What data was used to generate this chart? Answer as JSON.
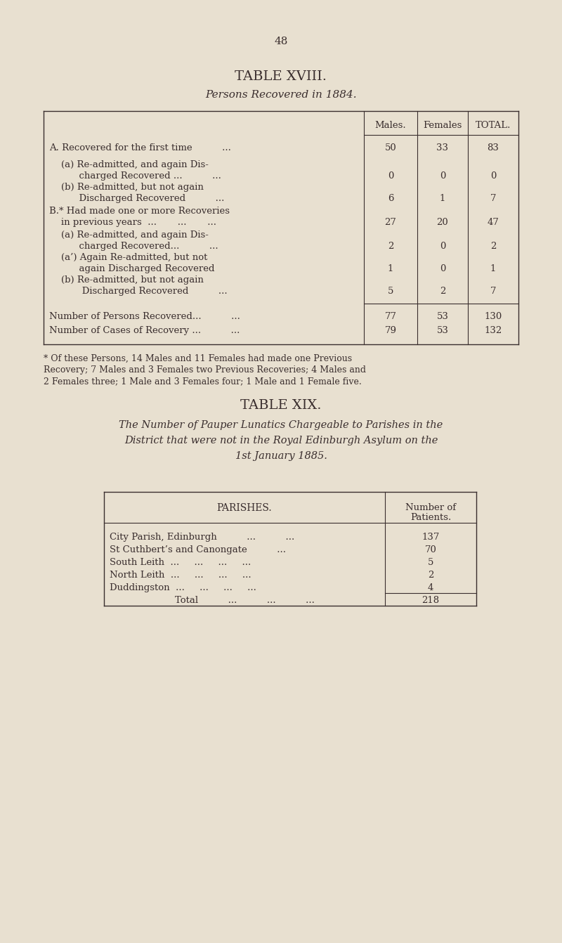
{
  "bg_color": "#e8e0d0",
  "text_color": "#3a2e2e",
  "page_number": "48",
  "table18_title": "TABLE XVIII.",
  "table18_subtitle": "Persons Recovered in 1884.",
  "table18_rows": [
    {
      "label_lines": [
        "A. Recovered for the first time          ..."
      ],
      "values": [
        "50",
        "33",
        "83"
      ]
    },
    {
      "label_lines": [
        "    (a) Re-admitted, and again Dis-",
        "          charged Recovered ...          ..."
      ],
      "values": [
        "0",
        "0",
        "0"
      ]
    },
    {
      "label_lines": [
        "    (b) Re-admitted, but not again",
        "          Discharged Recovered          ..."
      ],
      "values": [
        "6",
        "1",
        "7"
      ]
    },
    {
      "label_lines": [
        "B.* Had made one or more Recoveries",
        "    in previous years  ...       ...       ..."
      ],
      "values": [
        "27",
        "20",
        "47"
      ]
    },
    {
      "label_lines": [
        "    (a) Re-admitted, and again Dis-",
        "          charged Recovered...          ..."
      ],
      "values": [
        "2",
        "0",
        "2"
      ]
    },
    {
      "label_lines": [
        "    (a’) Again Re-admitted, but not",
        "          again Discharged Recovered"
      ],
      "values": [
        "1",
        "0",
        "1"
      ]
    },
    {
      "label_lines": [
        "    (b) Re-admitted, but not again",
        "           Discharged Recovered          ..."
      ],
      "values": [
        "5",
        "2",
        "7"
      ]
    }
  ],
  "table18_totals": [
    {
      "label": "Number of Persons Recovered...          ...",
      "values": [
        "77",
        "53",
        "130"
      ]
    },
    {
      "label": "Number of Cases of Recovery ...          ...",
      "values": [
        "79",
        "53",
        "132"
      ]
    }
  ],
  "footnote_lines": [
    "* Of these Persons, 14 Males and 11 Females had made one Previous",
    "Recovery; 7 Males and 3 Females two Previous Recoveries; 4 Males and",
    "2 Females three; 1 Male and 3 Females four; 1 Male and 1 Female five."
  ],
  "table19_title": "TABLE XIX.",
  "table19_subtitle_lines": [
    "The Number of Pauper Lunatics Chargeable to Parishes in the",
    "District that were not in the Royal Edinburgh Asylum on the",
    "1st January 1885."
  ],
  "table19_parishes_label": "PARISHES.",
  "table19_col_header_line1": "Number of",
  "table19_col_header_line2": "Patients.",
  "table19_rows": [
    {
      "label": "City Parish, Edinburgh          ...          ...",
      "value": "137"
    },
    {
      "label": "St Cuthbert’s and Canongate          ...",
      "value": "70"
    },
    {
      "label": "South Leith  ...     ...     ...     ...",
      "value": "5"
    },
    {
      "label": "North Leith  ...     ...     ...     ...",
      "value": "2"
    },
    {
      "label": "Duddingston  ...     ...     ...     ...",
      "value": "4"
    }
  ],
  "table19_total_label": "Total          ...          ...          ...",
  "table19_total_value": "218"
}
